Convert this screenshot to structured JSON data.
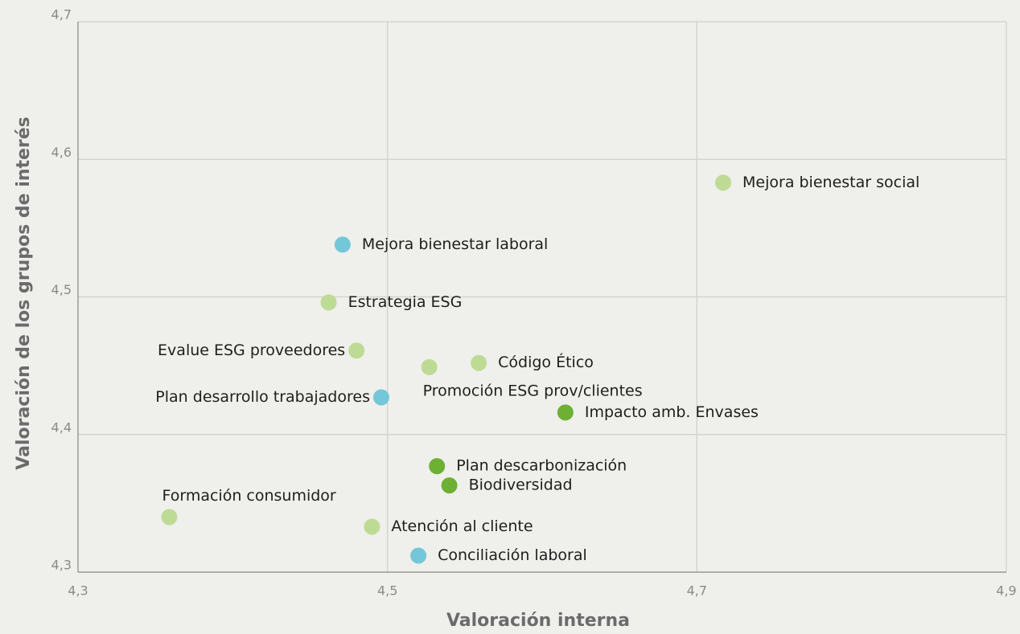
{
  "chart_data": {
    "type": "scatter",
    "xlabel": "Valoración interna",
    "ylabel": "Valoración de los grupos de interés",
    "labels": [
      "Mejora bienestar social",
      "Mejora bienestar laboral",
      "Estrategia ESG",
      "Evalue ESG proveedores",
      "Promoción ESG prov/clientes",
      "Código Ético",
      "Plan desarrollo trabajadores",
      "Impacto amb. Envases",
      "Plan descarbonización",
      "Biodiversidad",
      "Formación consumidor",
      "Atención al cliente",
      "Conciliación laboral"
    ],
    "x": [
      4.717,
      4.471,
      4.462,
      4.48,
      4.527,
      4.559,
      4.496,
      4.615,
      4.532,
      4.54,
      4.359,
      4.49,
      4.52
    ],
    "y": [
      4.583,
      4.538,
      4.496,
      4.461,
      4.449,
      4.452,
      4.427,
      4.416,
      4.377,
      4.363,
      4.34,
      4.333,
      4.312
    ],
    "colors": [
      "#bedb96",
      "#74c7d8",
      "#bedb96",
      "#bedb96",
      "#bedb96",
      "#bedb96",
      "#74c7d8",
      "#6db033",
      "#6db033",
      "#6db033",
      "#bedb96",
      "#bedb96",
      "#74c7d8"
    ],
    "xlim": [
      4.3,
      4.9
    ],
    "xticks": [
      {
        "value": 4.3,
        "label": "4,3"
      },
      {
        "value": 4.5,
        "label": "4,5"
      },
      {
        "value": 4.7,
        "label": "4,7"
      },
      {
        "value": 4.9,
        "label": "4,9"
      }
    ],
    "ylim": [
      4.3,
      4.7
    ],
    "yticks": [
      {
        "value": 4.3,
        "label": "4,3"
      },
      {
        "value": 4.4,
        "label": "4,4"
      },
      {
        "value": 4.5,
        "label": "4,5"
      },
      {
        "value": 4.6,
        "label": "4,6"
      },
      {
        "value": 4.7,
        "label": "4,7"
      }
    ],
    "grid": true
  }
}
